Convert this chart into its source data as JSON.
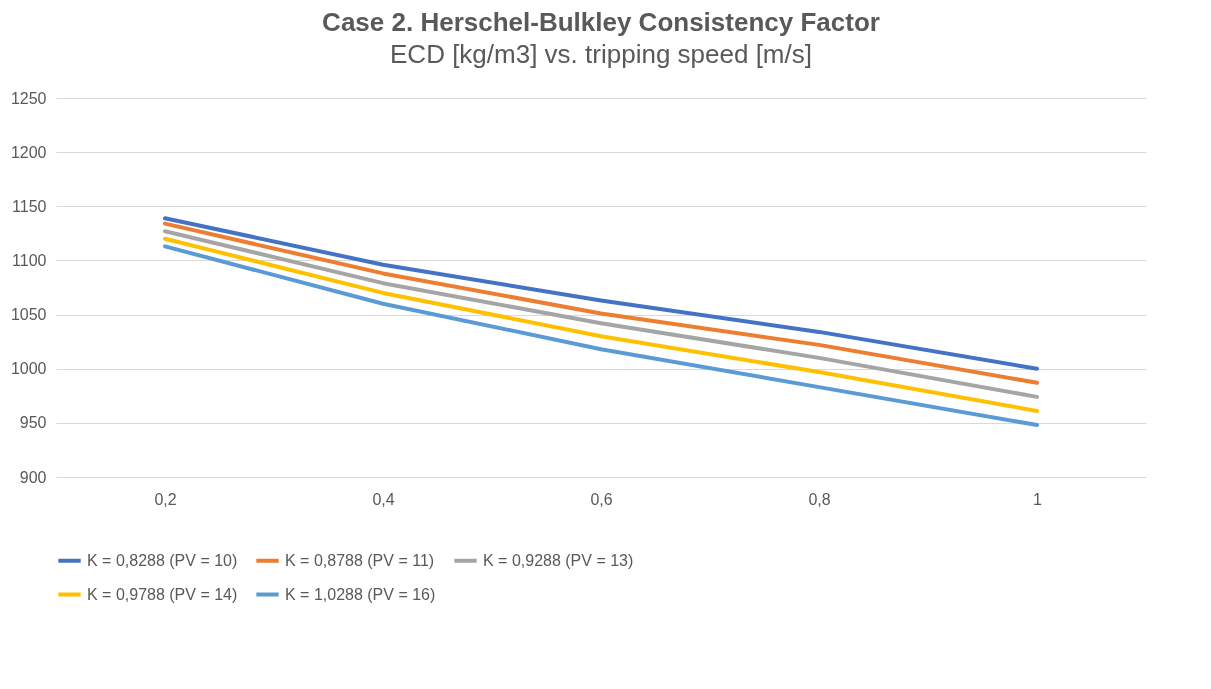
{
  "chart_data": {
    "type": "line",
    "title": "Case 2. Herschel-Bulkley Consistency Factor",
    "subtitle": "ECD [kg/m3] vs. tripping speed [m/s]",
    "categories": [
      "0,2",
      "0,4",
      "0,6",
      "0,8",
      "1"
    ],
    "series": [
      {
        "name": "K = 0,8288 (PV = 10)",
        "color": "#4472c4",
        "values": [
          1139,
          1096,
          1063,
          1034,
          1000
        ]
      },
      {
        "name": "K = 0,8788 (PV = 11)",
        "color": "#ed7d31",
        "values": [
          1134,
          1088,
          1051,
          1022,
          987
        ]
      },
      {
        "name": "K = 0,9288 (PV = 13)",
        "color": "#a5a5a5",
        "values": [
          1127,
          1079,
          1042,
          1010,
          974
        ]
      },
      {
        "name": "K = 0,9788 (PV = 14)",
        "color": "#ffc000",
        "values": [
          1120,
          1070,
          1030,
          997,
          961
        ]
      },
      {
        "name": "K = 1,0288 (PV = 16)",
        "color": "#5b9bd5",
        "values": [
          1113,
          1060,
          1018,
          983,
          948
        ]
      }
    ],
    "ylim": [
      900,
      1250
    ],
    "yticks": [
      900,
      950,
      1000,
      1050,
      1100,
      1150,
      1200,
      1250
    ],
    "grid": "y",
    "legend": "bottom",
    "marker": "none",
    "line_style": "solid"
  }
}
